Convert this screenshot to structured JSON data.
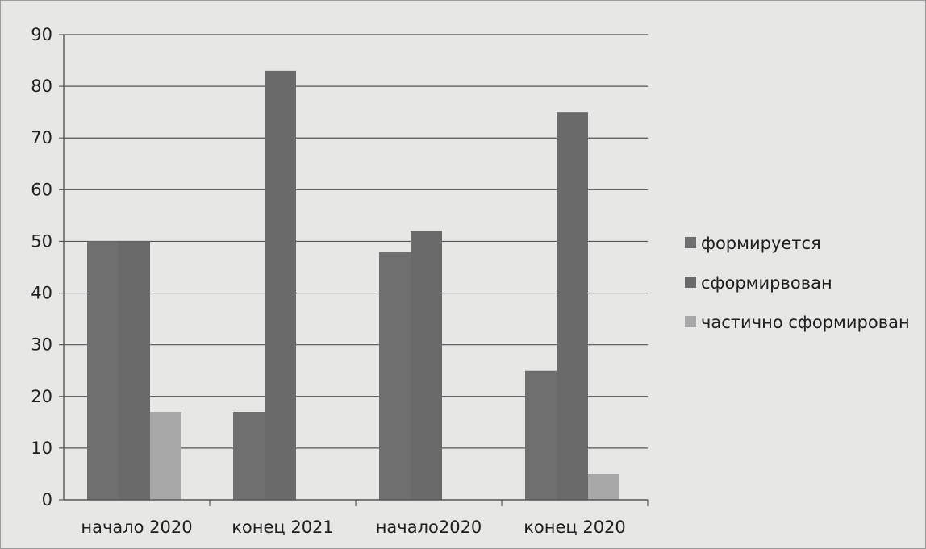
{
  "chart_data": {
    "type": "bar",
    "categories": [
      "начало 2020",
      "конец 2021",
      "начало2020",
      "конец 2020"
    ],
    "series": [
      {
        "name": "формируется",
        "values": [
          50,
          17,
          48,
          25
        ],
        "color": "#6f6f6f"
      },
      {
        "name": "сформирвован",
        "values": [
          50,
          83,
          52,
          75
        ],
        "color": "#6a6a6a"
      },
      {
        "name": "частично сформирован",
        "values": [
          17,
          0,
          0,
          5
        ],
        "color": "#a8a8a8"
      }
    ],
    "ylim": [
      0,
      90
    ],
    "yticks": [
      0,
      10,
      20,
      30,
      40,
      50,
      60,
      70,
      80,
      90
    ],
    "grid": true,
    "legend_position": "right"
  }
}
